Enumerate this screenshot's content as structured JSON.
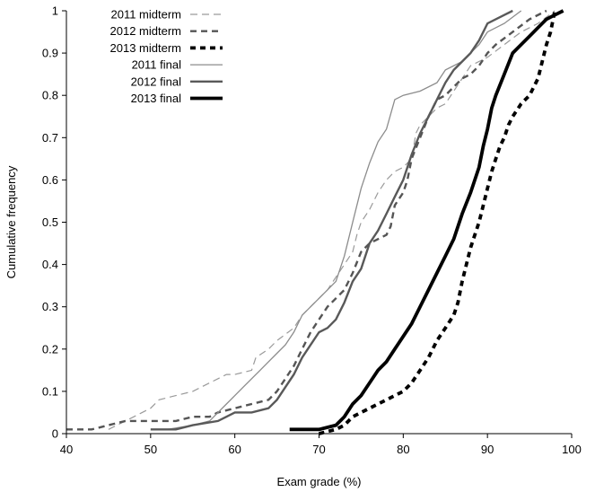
{
  "chart_data": {
    "type": "line",
    "xlabel": "Exam grade (%)",
    "ylabel": "Cumulative frequency",
    "xlim": [
      40,
      100
    ],
    "ylim": [
      0,
      1
    ],
    "x_ticks": [
      "40",
      "50",
      "60",
      "70",
      "80",
      "90",
      "100"
    ],
    "y_ticks": [
      "0",
      "0.1",
      "0.2",
      "0.3",
      "0.4",
      "0.5",
      "0.6",
      "0.7",
      "0.8",
      "0.9",
      "1"
    ],
    "grid": false,
    "legend_position": "top-left",
    "series": [
      {
        "name": "2011 midterm",
        "color": "#9a9a9a",
        "style": "dashed-thin",
        "points": [
          [
            45,
            0.01
          ],
          [
            46,
            0.02
          ],
          [
            48,
            0.04
          ],
          [
            50,
            0.06
          ],
          [
            51,
            0.08
          ],
          [
            53,
            0.09
          ],
          [
            55,
            0.1
          ],
          [
            57,
            0.12
          ],
          [
            58,
            0.13
          ],
          [
            59,
            0.14
          ],
          [
            60,
            0.14
          ],
          [
            62,
            0.15
          ],
          [
            62.5,
            0.18
          ],
          [
            64,
            0.2
          ],
          [
            65,
            0.22
          ],
          [
            67,
            0.25
          ],
          [
            68,
            0.28
          ],
          [
            69,
            0.3
          ],
          [
            70,
            0.32
          ],
          [
            71,
            0.34
          ],
          [
            72,
            0.37
          ],
          [
            73,
            0.4
          ],
          [
            74,
            0.43
          ],
          [
            74.5,
            0.47
          ],
          [
            75,
            0.5
          ],
          [
            76,
            0.53
          ],
          [
            77,
            0.57
          ],
          [
            78,
            0.6
          ],
          [
            79,
            0.62
          ],
          [
            80,
            0.63
          ],
          [
            81,
            0.65
          ],
          [
            81.5,
            0.71
          ],
          [
            82,
            0.73
          ],
          [
            83,
            0.75
          ],
          [
            84,
            0.77
          ],
          [
            85,
            0.78
          ],
          [
            86,
            0.81
          ],
          [
            87,
            0.84
          ],
          [
            88,
            0.87
          ],
          [
            90,
            0.89
          ],
          [
            92,
            0.92
          ],
          [
            94,
            0.95
          ],
          [
            96,
            0.97
          ],
          [
            98,
            1.0
          ]
        ]
      },
      {
        "name": "2012 midterm",
        "color": "#555555",
        "style": "dashed-medium",
        "points": [
          [
            40,
            0.01
          ],
          [
            43,
            0.01
          ],
          [
            45,
            0.02
          ],
          [
            47,
            0.03
          ],
          [
            50,
            0.03
          ],
          [
            53,
            0.03
          ],
          [
            55,
            0.04
          ],
          [
            57,
            0.04
          ],
          [
            58,
            0.05
          ],
          [
            60,
            0.06
          ],
          [
            62,
            0.07
          ],
          [
            64,
            0.08
          ],
          [
            65,
            0.1
          ],
          [
            66,
            0.13
          ],
          [
            67,
            0.16
          ],
          [
            68,
            0.2
          ],
          [
            69,
            0.24
          ],
          [
            70,
            0.27
          ],
          [
            71,
            0.3
          ],
          [
            72,
            0.32
          ],
          [
            73,
            0.34
          ],
          [
            74,
            0.38
          ],
          [
            75,
            0.43
          ],
          [
            76,
            0.45
          ],
          [
            77,
            0.46
          ],
          [
            78,
            0.47
          ],
          [
            78.5,
            0.49
          ],
          [
            79,
            0.54
          ],
          [
            80,
            0.57
          ],
          [
            80.5,
            0.6
          ],
          [
            81,
            0.65
          ],
          [
            82,
            0.7
          ],
          [
            83,
            0.75
          ],
          [
            84,
            0.79
          ],
          [
            85,
            0.8
          ],
          [
            86,
            0.82
          ],
          [
            87,
            0.84
          ],
          [
            88,
            0.85
          ],
          [
            89,
            0.87
          ],
          [
            90,
            0.9
          ],
          [
            91,
            0.92
          ],
          [
            93,
            0.95
          ],
          [
            95,
            0.98
          ],
          [
            97,
            1.0
          ]
        ]
      },
      {
        "name": "2013 midterm",
        "color": "#000000",
        "style": "dashed-thick",
        "points": [
          [
            70,
            0.0
          ],
          [
            72,
            0.01
          ],
          [
            73,
            0.02
          ],
          [
            74,
            0.04
          ],
          [
            76,
            0.06
          ],
          [
            78,
            0.08
          ],
          [
            80,
            0.1
          ],
          [
            81,
            0.12
          ],
          [
            82,
            0.15
          ],
          [
            83,
            0.18
          ],
          [
            84,
            0.22
          ],
          [
            85,
            0.25
          ],
          [
            86,
            0.28
          ],
          [
            86.5,
            0.31
          ],
          [
            87,
            0.36
          ],
          [
            87.5,
            0.4
          ],
          [
            88,
            0.44
          ],
          [
            88.5,
            0.47
          ],
          [
            89,
            0.5
          ],
          [
            89.5,
            0.54
          ],
          [
            90,
            0.58
          ],
          [
            90.5,
            0.62
          ],
          [
            91,
            0.65
          ],
          [
            91.5,
            0.68
          ],
          [
            92,
            0.7
          ],
          [
            92.5,
            0.73
          ],
          [
            93,
            0.75
          ],
          [
            94,
            0.78
          ],
          [
            95,
            0.8
          ],
          [
            96,
            0.84
          ],
          [
            96.5,
            0.88
          ],
          [
            97,
            0.92
          ],
          [
            97.5,
            0.95
          ],
          [
            98,
            1.0
          ]
        ]
      },
      {
        "name": "2011 final",
        "color": "#8c8c8c",
        "style": "solid-thin",
        "points": [
          [
            52,
            0.01
          ],
          [
            55,
            0.02
          ],
          [
            57,
            0.03
          ],
          [
            58,
            0.05
          ],
          [
            59,
            0.07
          ],
          [
            60,
            0.09
          ],
          [
            61,
            0.11
          ],
          [
            62,
            0.13
          ],
          [
            63,
            0.15
          ],
          [
            64,
            0.17
          ],
          [
            65,
            0.19
          ],
          [
            66,
            0.21
          ],
          [
            67,
            0.24
          ],
          [
            68,
            0.28
          ],
          [
            69,
            0.3
          ],
          [
            70,
            0.32
          ],
          [
            71,
            0.34
          ],
          [
            72,
            0.36
          ],
          [
            73,
            0.42
          ],
          [
            74,
            0.5
          ],
          [
            75,
            0.58
          ],
          [
            76,
            0.64
          ],
          [
            77,
            0.69
          ],
          [
            78,
            0.72
          ],
          [
            79,
            0.79
          ],
          [
            80,
            0.8
          ],
          [
            82,
            0.81
          ],
          [
            84,
            0.83
          ],
          [
            85,
            0.86
          ],
          [
            87,
            0.88
          ],
          [
            88,
            0.9
          ],
          [
            89,
            0.92
          ],
          [
            90,
            0.95
          ],
          [
            92,
            0.97
          ],
          [
            94,
            1.0
          ]
        ]
      },
      {
        "name": "2012 final",
        "color": "#595959",
        "style": "solid-medium",
        "points": [
          [
            50,
            0.01
          ],
          [
            53,
            0.01
          ],
          [
            55,
            0.02
          ],
          [
            58,
            0.03
          ],
          [
            59,
            0.04
          ],
          [
            60,
            0.05
          ],
          [
            62,
            0.05
          ],
          [
            64,
            0.06
          ],
          [
            65,
            0.08
          ],
          [
            66,
            0.11
          ],
          [
            67,
            0.14
          ],
          [
            68,
            0.18
          ],
          [
            69,
            0.21
          ],
          [
            70,
            0.24
          ],
          [
            71,
            0.25
          ],
          [
            72,
            0.27
          ],
          [
            73,
            0.31
          ],
          [
            74,
            0.36
          ],
          [
            75,
            0.39
          ],
          [
            76,
            0.45
          ],
          [
            77,
            0.48
          ],
          [
            78,
            0.52
          ],
          [
            79,
            0.56
          ],
          [
            80,
            0.6
          ],
          [
            81,
            0.66
          ],
          [
            82,
            0.71
          ],
          [
            83,
            0.75
          ],
          [
            84,
            0.79
          ],
          [
            85,
            0.83
          ],
          [
            86,
            0.86
          ],
          [
            87,
            0.88
          ],
          [
            88,
            0.9
          ],
          [
            89,
            0.93
          ],
          [
            90,
            0.97
          ],
          [
            92,
            0.99
          ],
          [
            93,
            1.0
          ]
        ]
      },
      {
        "name": "2013 final",
        "color": "#000000",
        "style": "solid-thick",
        "points": [
          [
            66.5,
            0.01
          ],
          [
            70,
            0.01
          ],
          [
            72,
            0.02
          ],
          [
            73,
            0.04
          ],
          [
            74,
            0.07
          ],
          [
            75,
            0.09
          ],
          [
            76,
            0.12
          ],
          [
            77,
            0.15
          ],
          [
            78,
            0.17
          ],
          [
            79,
            0.2
          ],
          [
            80,
            0.23
          ],
          [
            81,
            0.26
          ],
          [
            82,
            0.3
          ],
          [
            83,
            0.34
          ],
          [
            84,
            0.38
          ],
          [
            85,
            0.42
          ],
          [
            86,
            0.46
          ],
          [
            87,
            0.52
          ],
          [
            88,
            0.57
          ],
          [
            89,
            0.63
          ],
          [
            89.5,
            0.68
          ],
          [
            90,
            0.72
          ],
          [
            90.5,
            0.77
          ],
          [
            91,
            0.8
          ],
          [
            92,
            0.85
          ],
          [
            93,
            0.9
          ],
          [
            94,
            0.92
          ],
          [
            95,
            0.94
          ],
          [
            96,
            0.96
          ],
          [
            97,
            0.98
          ],
          [
            98,
            0.99
          ],
          [
            99,
            1.0
          ]
        ]
      }
    ]
  }
}
